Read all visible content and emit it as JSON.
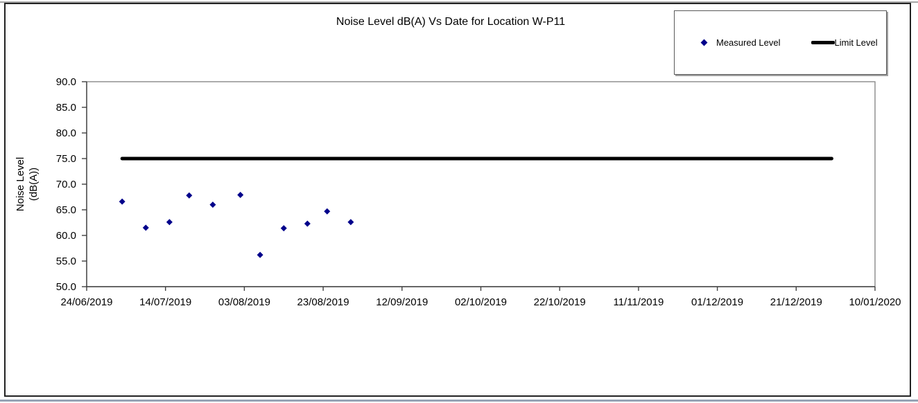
{
  "page": {
    "background": "#ffffff"
  },
  "chart_data": {
    "type": "scatter",
    "title": "Noise Level dB(A) Vs Date for Location W-P11",
    "x_axis": {
      "ticks": [
        "24/06/2019",
        "14/07/2019",
        "03/08/2019",
        "23/08/2019",
        "12/09/2019",
        "02/10/2019",
        "22/10/2019",
        "11/11/2019",
        "01/12/2019",
        "21/12/2019",
        "10/01/2020"
      ],
      "tick_interval_days": 20
    },
    "y_axis": {
      "title_lines": [
        "Noise Level",
        "(dB(A))"
      ],
      "min": 50.0,
      "max": 90.0,
      "step": 5.0,
      "tick_labels": [
        "50.0",
        "55.0",
        "60.0",
        "65.0",
        "70.0",
        "75.0",
        "80.0",
        "85.0",
        "90.0"
      ]
    },
    "grid": "off",
    "legend_position": "top-right",
    "series": [
      {
        "name": "Measured Level",
        "type": "scatter",
        "marker": "diamond",
        "color": "#00008B",
        "points": [
          {
            "date": "03/07/2019",
            "value": 66.6
          },
          {
            "date": "09/07/2019",
            "value": 61.5
          },
          {
            "date": "15/07/2019",
            "value": 62.6
          },
          {
            "date": "20/07/2019",
            "value": 67.8
          },
          {
            "date": "26/07/2019",
            "value": 66.0
          },
          {
            "date": "02/08/2019",
            "value": 67.9
          },
          {
            "date": "07/08/2019",
            "value": 56.2
          },
          {
            "date": "13/08/2019",
            "value": 61.4
          },
          {
            "date": "19/08/2019",
            "value": 62.3
          },
          {
            "date": "24/08/2019",
            "value": 64.7
          },
          {
            "date": "30/08/2019",
            "value": 62.6
          }
        ]
      },
      {
        "name": "Limit Level",
        "type": "line",
        "color": "#000000",
        "value": 75.0,
        "start_date": "03/07/2019",
        "end_date": "30/12/2019",
        "stroke_width": 5
      }
    ],
    "legend": {
      "items": [
        {
          "label": "Measured Level",
          "marker": "diamond",
          "color": "#00008B"
        },
        {
          "label": "Limit Level",
          "marker": "line",
          "color": "#000000"
        }
      ]
    }
  }
}
